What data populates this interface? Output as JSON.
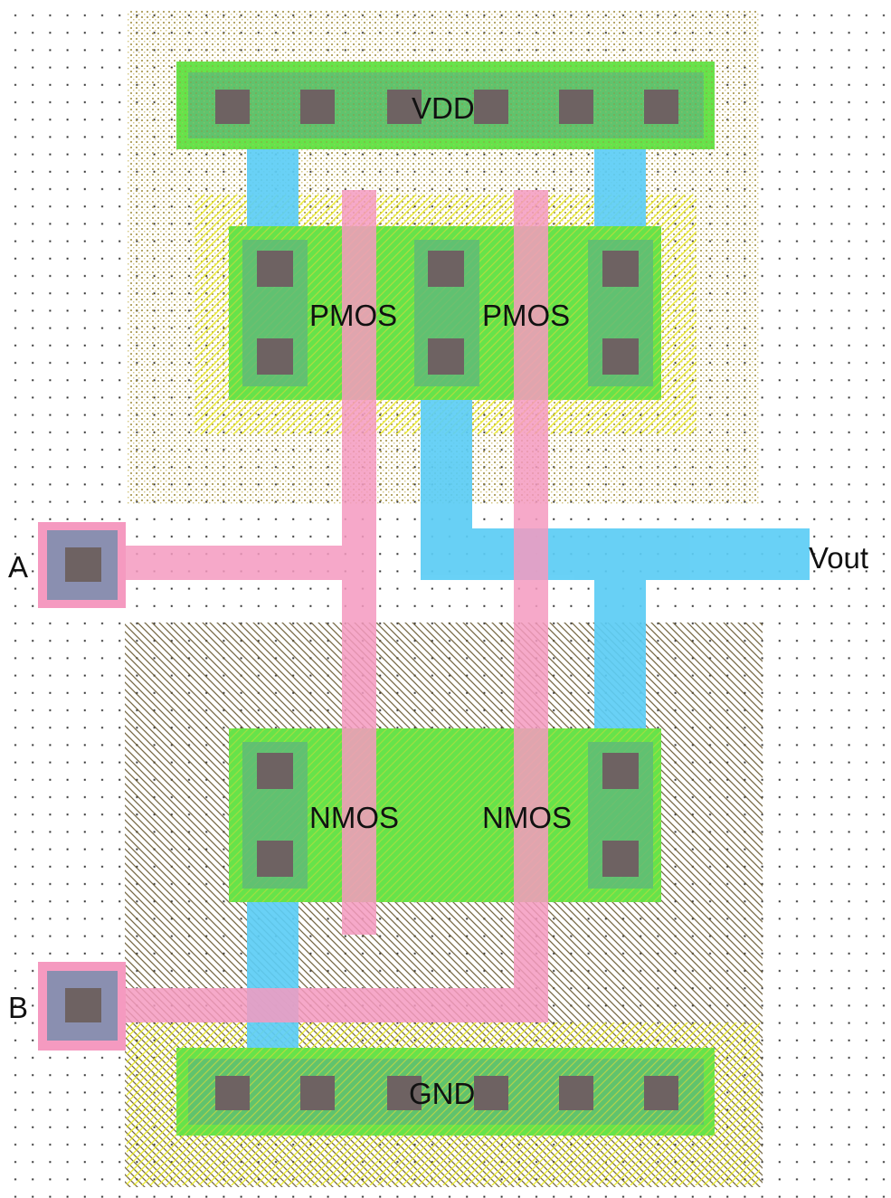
{
  "layout": {
    "labels": {
      "vdd": "VDD",
      "gnd": "GND",
      "pmos_left": "PMOS",
      "pmos_right": "PMOS",
      "nmos_left": "NMOS",
      "nmos_right": "NMOS",
      "input_a": "A",
      "input_b": "B",
      "output": "Vout"
    },
    "colors": {
      "diffusion": "#66e34a",
      "metal1": "#5ccdf5",
      "poly": "#f59ac0",
      "contact": "#6e6262",
      "via_pad": "#8a8fb0",
      "nwell_hatch": "#b8a84a",
      "pwell_hatch": "#6b5a2a",
      "select_hatch": "#f0f020",
      "grid_dot": "#222222"
    }
  }
}
